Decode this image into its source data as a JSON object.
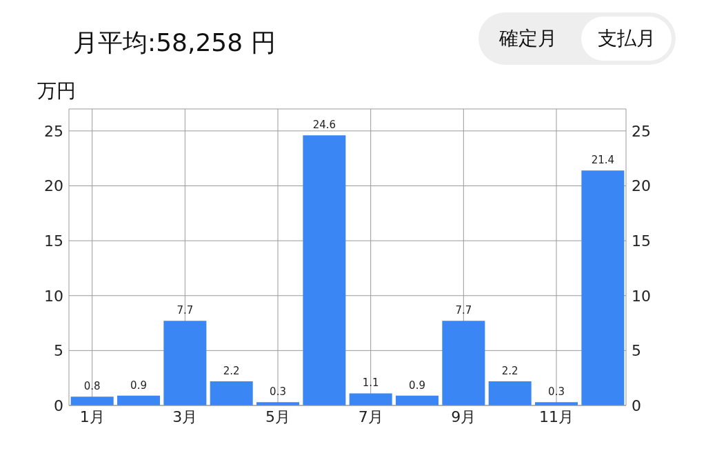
{
  "chart_data": {
    "type": "bar",
    "title": "月平均:58,258 円",
    "ylabel": "万円",
    "annotations": [
      "確定月",
      "支払月"
    ],
    "categories": [
      "1月",
      null,
      "3月",
      null,
      "5月",
      null,
      "7月",
      null,
      "9月",
      null,
      "11月",
      null
    ],
    "values": [
      0.8,
      0.9,
      7.7,
      2.2,
      0.3,
      24.6,
      1.1,
      0.9,
      7.7,
      2.2,
      0.3,
      21.4
    ],
    "color": "#3b86f5",
    "ylim": [
      0,
      27
    ],
    "yticks": [
      0,
      5,
      10,
      15,
      20,
      25
    ],
    "y2lim": [
      0,
      27
    ],
    "y2ticks": [
      0,
      5,
      10,
      15,
      20,
      25
    ],
    "grid": true,
    "data_labels": true,
    "legend": false
  }
}
